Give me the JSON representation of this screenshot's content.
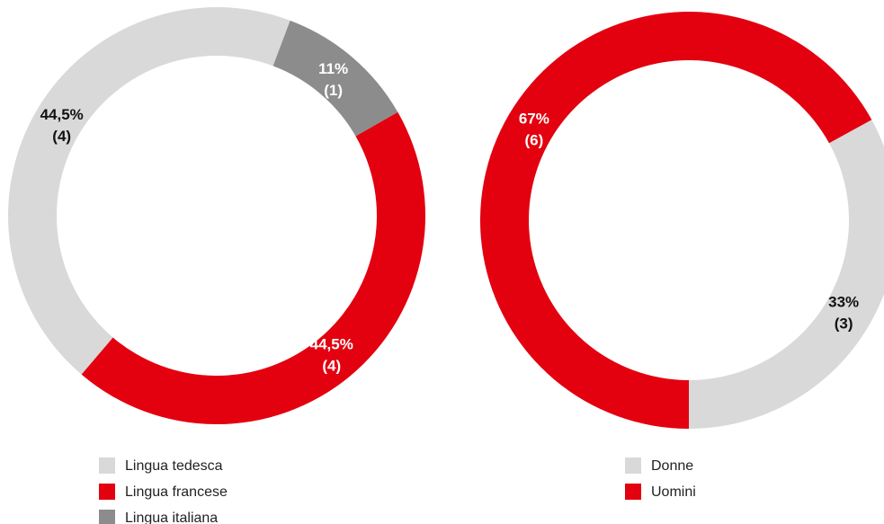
{
  "chart_data": [
    {
      "type": "pie",
      "categories": [
        "Lingua tedesca",
        "Lingua francese",
        "Lingua italiana"
      ],
      "values": [
        44.5,
        44.5,
        11
      ],
      "value_labels": [
        "44,5%",
        "44,5%",
        "11%"
      ],
      "counts": [
        4,
        4,
        1
      ],
      "count_labels": [
        "(4)",
        "(4)",
        "(1)"
      ],
      "colors": [
        "#d9d9d9",
        "#e3000f",
        "#8c8c8c"
      ]
    },
    {
      "type": "pie",
      "categories": [
        "Donne",
        "Uomini"
      ],
      "values": [
        33,
        67
      ],
      "value_labels": [
        "33%",
        "67%"
      ],
      "counts": [
        3,
        6
      ],
      "count_labels": [
        "(3)",
        "(6)"
      ],
      "colors": [
        "#d9d9d9",
        "#e3000f"
      ]
    }
  ]
}
